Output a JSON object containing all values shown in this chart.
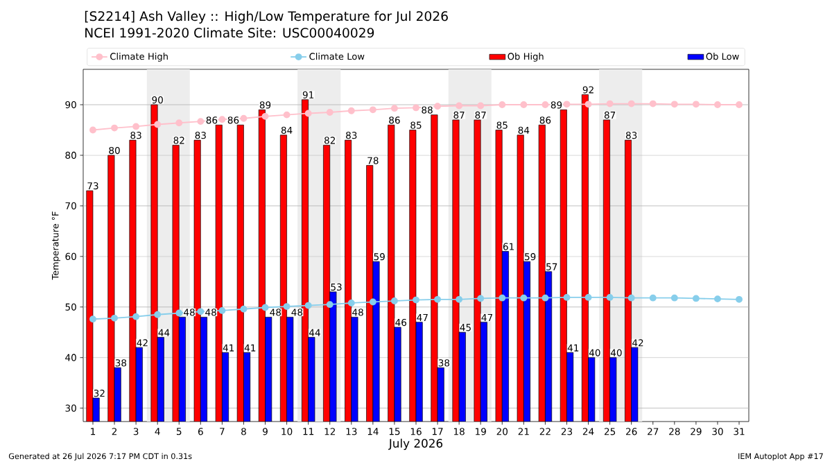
{
  "chart_data": {
    "type": "bar",
    "title": "[S2214] Ash Valley :: High/Low Temperature for Jul 2026",
    "subtitle": "NCEI 1991-2020 Climate Site: USC00040029",
    "xlabel": "July 2026",
    "ylabel": "Temperature °F",
    "annotations": [
      "Generated at 26 Jul 2026 7:17 PM CDT in 0.31s",
      "IEM Autoplot App #17"
    ],
    "x": [
      1,
      2,
      3,
      4,
      5,
      6,
      7,
      8,
      9,
      10,
      11,
      12,
      13,
      14,
      15,
      16,
      17,
      18,
      19,
      20,
      21,
      22,
      23,
      24,
      25,
      26,
      27,
      28,
      29,
      30,
      31
    ],
    "xlim": [
      0.55,
      31.45
    ],
    "xticks": [
      1,
      2,
      3,
      4,
      5,
      6,
      7,
      8,
      9,
      10,
      11,
      12,
      13,
      14,
      15,
      16,
      17,
      18,
      19,
      20,
      21,
      22,
      23,
      24,
      25,
      26,
      27,
      28,
      29,
      30,
      31
    ],
    "ylim": [
      27.35,
      97.0
    ],
    "yticks": [
      30,
      40,
      50,
      60,
      70,
      80,
      90
    ],
    "grid": "y",
    "legend": "top",
    "marker": "circle",
    "bands": [
      {
        "axis": "x",
        "from": 3.5,
        "to": 5.5,
        "color": "#ededed"
      },
      {
        "axis": "x",
        "from": 10.5,
        "to": 12.5,
        "color": "#ededed"
      },
      {
        "axis": "x",
        "from": 17.5,
        "to": 19.5,
        "color": "#ededed"
      },
      {
        "axis": "x",
        "from": 24.5,
        "to": 26.5,
        "color": "#ededed"
      }
    ],
    "series": [
      {
        "name": "Climate High",
        "type": "line",
        "color": "#ffc0cb",
        "values": [
          85.0,
          85.4,
          85.7,
          86.1,
          86.4,
          86.7,
          87.1,
          87.3,
          87.7,
          88.0,
          88.3,
          88.5,
          88.8,
          89.0,
          89.3,
          89.4,
          89.7,
          89.8,
          89.8,
          90.0,
          90.0,
          90.0,
          90.1,
          90.1,
          90.2,
          90.2,
          90.2,
          90.1,
          90.1,
          90.0,
          90.0
        ]
      },
      {
        "name": "Climate Low",
        "type": "line",
        "color": "#87ceeb",
        "values": [
          47.6,
          47.8,
          48.1,
          48.5,
          48.8,
          49.1,
          49.3,
          49.6,
          49.9,
          50.1,
          50.3,
          50.5,
          50.8,
          51.0,
          51.2,
          51.4,
          51.5,
          51.5,
          51.7,
          51.8,
          51.8,
          51.8,
          51.9,
          51.9,
          51.9,
          51.8,
          51.8,
          51.8,
          51.7,
          51.6,
          51.5
        ]
      },
      {
        "name": "Ob High",
        "color": "#ff0000",
        "values": [
          73,
          80,
          83,
          90,
          82,
          83,
          86,
          86,
          89,
          84,
          91,
          82,
          83,
          78,
          86,
          85,
          88,
          87,
          87,
          85,
          84,
          86,
          89,
          92,
          87,
          83,
          null,
          null,
          null,
          null,
          null
        ],
        "value_labels": [
          "73",
          "80",
          "83",
          "90",
          "82",
          "83",
          "86",
          "86",
          "89",
          "84",
          "91",
          "82",
          "83",
          "78",
          "86",
          "85",
          "88",
          "87",
          "87",
          "85",
          "84",
          "86",
          "89",
          "92",
          "87",
          "83",
          null,
          null,
          null,
          null,
          null
        ]
      },
      {
        "name": "Ob Low",
        "color": "#0000ff",
        "values": [
          32,
          38,
          42,
          44,
          48,
          48,
          41,
          41,
          48,
          48,
          44,
          53,
          48,
          59,
          46,
          47,
          38,
          45,
          47,
          61,
          59,
          57,
          41,
          40,
          40,
          42,
          null,
          null,
          null,
          null,
          null
        ],
        "value_labels": [
          "32",
          "38",
          "42",
          "44",
          "48",
          "48",
          "41",
          "41",
          "48",
          "48",
          "44",
          "53",
          "48",
          "59",
          "46",
          "47",
          "38",
          "45",
          "47",
          "61",
          "59",
          "57",
          "41",
          "40",
          "40",
          "42",
          null,
          null,
          null,
          null,
          null
        ]
      }
    ]
  }
}
